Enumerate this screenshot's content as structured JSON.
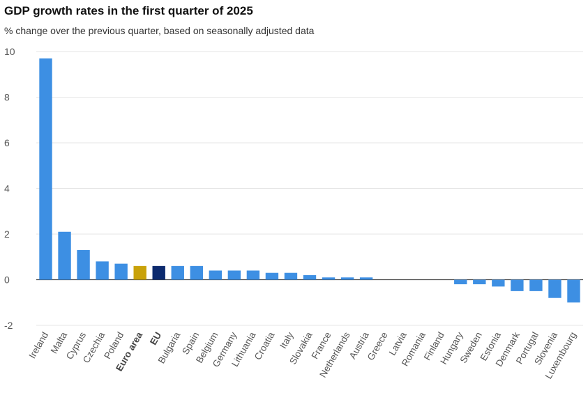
{
  "title": "GDP growth rates in the first quarter of 2025",
  "subtitle": "% change over the previous quarter, based on seasonally adjusted data",
  "colors": {
    "default": "#3d8fe3",
    "euro_area": "#c9a20a",
    "eu": "#0c2a6e",
    "grid": "#e6e6e6",
    "axis": "#444444"
  },
  "chart_data": {
    "type": "bar",
    "title": "GDP growth rates in the first quarter of 2025",
    "subtitle": "% change over the previous quarter, based on seasonally adjusted data",
    "xlabel": "",
    "ylabel": "",
    "ylim": [
      -2,
      10
    ],
    "yticks": [
      -2,
      0,
      2,
      4,
      6,
      8,
      10
    ],
    "grid": true,
    "categories": [
      "Ireland",
      "Malta",
      "Cyprus",
      "Czechia",
      "Poland",
      "Euro area",
      "EU",
      "Bulgaria",
      "Spain",
      "Belgium",
      "Germany",
      "Lithuania",
      "Croatia",
      "Italy",
      "Slovakia",
      "France",
      "Netherlands",
      "Austria",
      "Greece",
      "Latvia",
      "Romania",
      "Finland",
      "Hungary",
      "Sweden",
      "Estonia",
      "Denmark",
      "Portugal",
      "Slovenia",
      "Luxembourg"
    ],
    "values": [
      9.7,
      2.1,
      1.3,
      0.8,
      0.7,
      0.6,
      0.6,
      0.6,
      0.6,
      0.4,
      0.4,
      0.4,
      0.3,
      0.3,
      0.2,
      0.1,
      0.1,
      0.1,
      0.0,
      0.0,
      0.0,
      0.0,
      -0.2,
      -0.2,
      -0.3,
      -0.5,
      -0.5,
      -0.8,
      -1.0
    ],
    "highlight": {
      "Euro area": "euro_area",
      "EU": "eu"
    },
    "bold_categories": [
      "Euro area",
      "EU"
    ]
  }
}
